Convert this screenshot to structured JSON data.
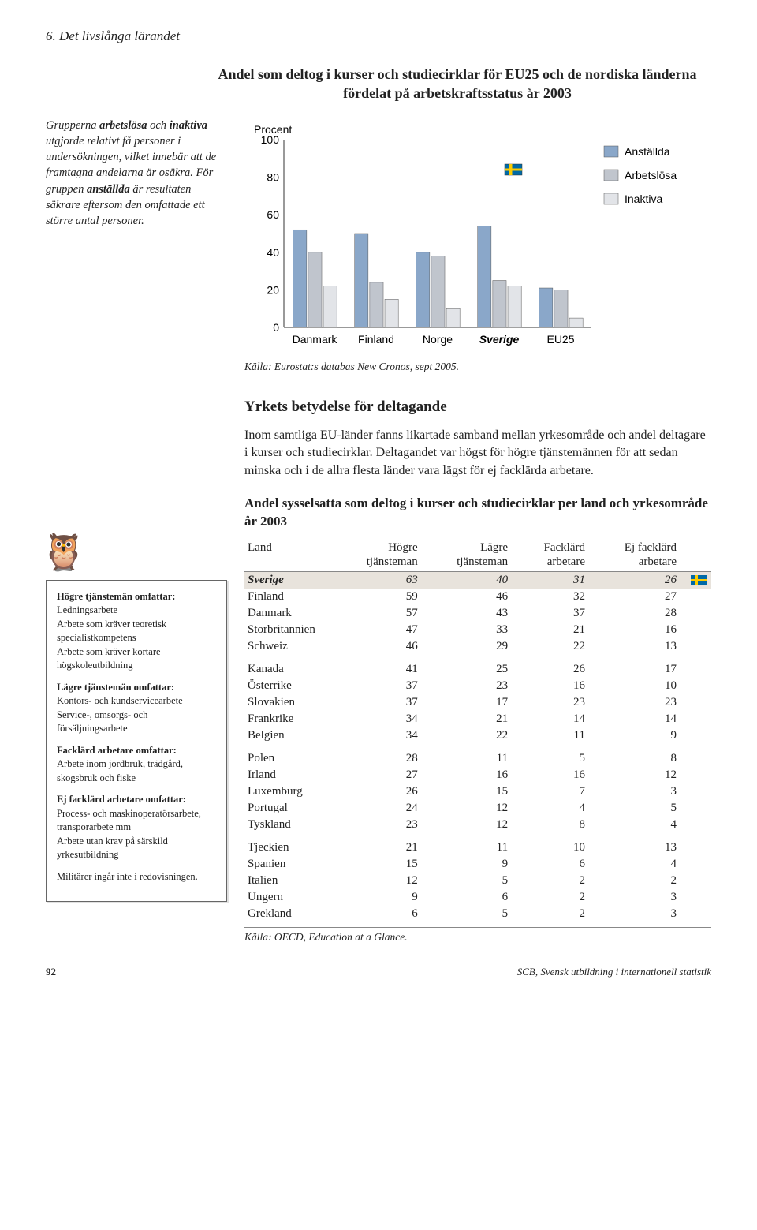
{
  "header": {
    "section": "6. Det livslånga lärandet"
  },
  "chart": {
    "type": "bar",
    "title": "Andel som deltog i kurser och studiecirklar för EU25 och de nordiska länderna fördelat på arbetskraftsstatus år 2003",
    "ylabel": "Procent",
    "ylim": [
      0,
      100
    ],
    "ytick_step": 20,
    "categories": [
      "Danmark",
      "Finland",
      "Norge",
      "Sverige",
      "EU25"
    ],
    "sverige_index": 3,
    "series": [
      {
        "name": "Anställda",
        "color": "#8aa7c9",
        "values": [
          52,
          50,
          40,
          54,
          21
        ]
      },
      {
        "name": "Arbetslösa",
        "color": "#c0c5cd",
        "values": [
          40,
          24,
          38,
          25,
          20
        ]
      },
      {
        "name": "Inaktiva",
        "color": "#e2e4e8",
        "values": [
          22,
          15,
          10,
          22,
          5
        ]
      }
    ],
    "legend_pos": "right",
    "background_color": "#ffffff",
    "axis_color": "#333333",
    "grid_color": "#dddddd",
    "label_fontsize": 14,
    "legend_fontsize": 14,
    "source": "Källa: Eurostat:s databas New Cronos, sept 2005."
  },
  "side_note": {
    "text": "Grupperna arbetslösa och inaktiva utgjorde relativt få personer i undersökningen, vilket innebär att de framtagna andelarna är osäkra. För gruppen anställda är resultaten säkrare eftersom den omfattade ett större antal personer."
  },
  "section2": {
    "heading": "Yrkets betydelse för deltagande",
    "body": "Inom samtliga EU-länder fanns likartade samband mellan yrkesområde och andel deltagare i kurser och studiecirklar. Deltagandet var högst för högre tjänstemännen för att sedan minska och i de allra flesta länder vara lägst för ej facklärda arbetare."
  },
  "defs_box": {
    "items": [
      {
        "title": "Högre tjänstemän omfattar:",
        "body": "Ledningsarbete\nArbete som kräver teoretisk specialistkompetens\nArbete som kräver kortare högskoleutbildning"
      },
      {
        "title": "Lägre tjänstemän omfattar:",
        "body": "Kontors- och kundservicearbete\nService-, omsorgs- och försäljningsarbete"
      },
      {
        "title": "Facklärd arbetare omfattar:",
        "body": "Arbete inom jordbruk, trädgård, skogsbruk och fiske"
      },
      {
        "title": "Ej facklärd arbetare omfattar:",
        "body": "Process- och maskinoperatörsarbete, transporarbete mm\nArbete utan krav på särskild yrkesutbildning"
      }
    ],
    "tail": "Militärer ingår inte i redovisningen."
  },
  "table": {
    "type": "table",
    "title": "Andel sysselsatta som deltog i kurser och studiecirklar per land och yrkesområde år 2003",
    "columns": [
      "Land",
      "Högre\ntjänsteman",
      "Lägre\ntjänsteman",
      "Facklärd\narbetare",
      "Ej facklärd\narbetare"
    ],
    "groups": [
      [
        {
          "country": "Sverige",
          "vals": [
            63,
            40,
            31,
            26
          ],
          "highlight": true,
          "flag": true
        },
        {
          "country": "Finland",
          "vals": [
            59,
            46,
            32,
            27
          ]
        },
        {
          "country": "Danmark",
          "vals": [
            57,
            43,
            37,
            28
          ]
        },
        {
          "country": "Storbritannien",
          "vals": [
            47,
            33,
            21,
            16
          ]
        },
        {
          "country": "Schweiz",
          "vals": [
            46,
            29,
            22,
            13
          ]
        }
      ],
      [
        {
          "country": "Kanada",
          "vals": [
            41,
            25,
            26,
            17
          ]
        },
        {
          "country": "Österrike",
          "vals": [
            37,
            23,
            16,
            10
          ]
        },
        {
          "country": "Slovakien",
          "vals": [
            37,
            17,
            23,
            23
          ]
        },
        {
          "country": "Frankrike",
          "vals": [
            34,
            21,
            14,
            14
          ]
        },
        {
          "country": "Belgien",
          "vals": [
            34,
            22,
            11,
            9
          ]
        }
      ],
      [
        {
          "country": "Polen",
          "vals": [
            28,
            11,
            5,
            8
          ]
        },
        {
          "country": "Irland",
          "vals": [
            27,
            16,
            16,
            12
          ]
        },
        {
          "country": "Luxemburg",
          "vals": [
            26,
            15,
            7,
            3
          ]
        },
        {
          "country": "Portugal",
          "vals": [
            24,
            12,
            4,
            5
          ]
        },
        {
          "country": "Tyskland",
          "vals": [
            23,
            12,
            8,
            4
          ]
        }
      ],
      [
        {
          "country": "Tjeckien",
          "vals": [
            21,
            11,
            10,
            13
          ]
        },
        {
          "country": "Spanien",
          "vals": [
            15,
            9,
            6,
            4
          ]
        },
        {
          "country": "Italien",
          "vals": [
            12,
            5,
            2,
            2
          ]
        },
        {
          "country": "Ungern",
          "vals": [
            9,
            6,
            2,
            3
          ]
        },
        {
          "country": "Grekland",
          "vals": [
            6,
            5,
            2,
            3
          ]
        }
      ]
    ],
    "source": "Källa: OECD, Education at a Glance."
  },
  "footer": {
    "page": "92",
    "pub": "SCB, Svensk utbildning i internationell statistik"
  }
}
